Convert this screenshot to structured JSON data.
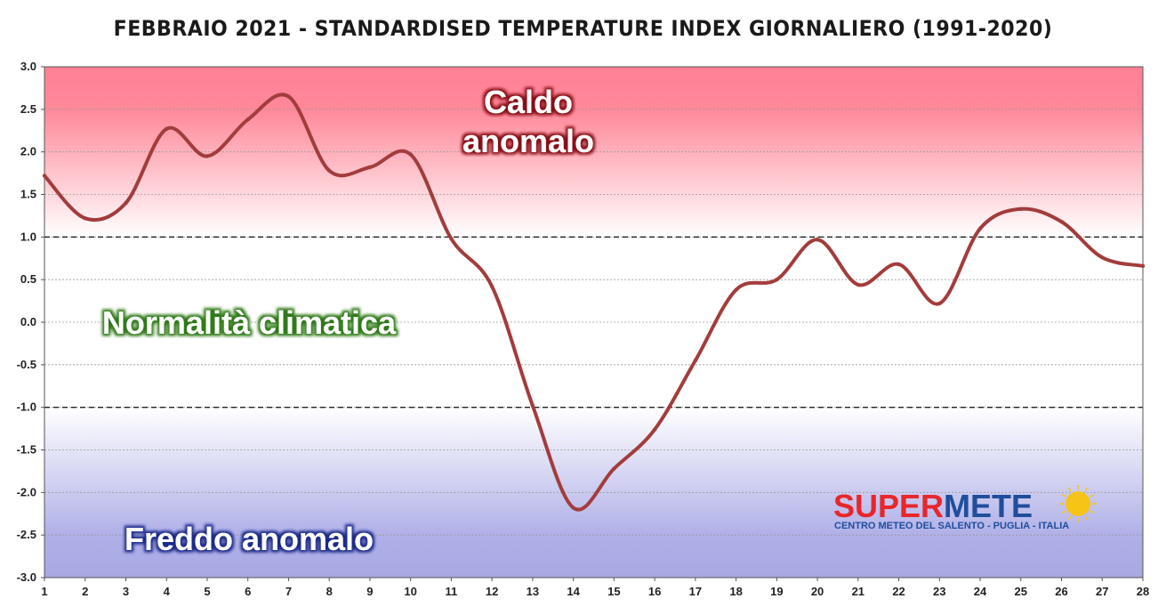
{
  "chart_data": {
    "type": "line",
    "title": "FEBBRAIO 2021 - STANDARDISED TEMPERATURE INDEX GIORNALIERO (1991-2020)",
    "xlabel": "",
    "ylabel": "",
    "categories": [
      "1",
      "2",
      "3",
      "4",
      "5",
      "6",
      "7",
      "8",
      "9",
      "10",
      "11",
      "12",
      "13",
      "14",
      "15",
      "16",
      "17",
      "18",
      "19",
      "20",
      "21",
      "22",
      "23",
      "24",
      "25",
      "26",
      "27",
      "28"
    ],
    "values": [
      1.72,
      1.22,
      1.4,
      2.27,
      1.95,
      2.38,
      2.65,
      1.78,
      1.82,
      1.97,
      0.98,
      0.42,
      -0.98,
      -2.18,
      -1.72,
      -1.26,
      -0.45,
      0.38,
      0.5,
      0.97,
      0.44,
      0.68,
      0.22,
      1.1,
      1.33,
      1.18,
      0.76,
      0.66
    ],
    "ylim": [
      -3.0,
      3.0
    ],
    "yticks": [
      "3.0",
      "2.5",
      "2.0",
      "1.5",
      "1.0",
      "0.5",
      "0.0",
      "-0.5",
      "-1.0",
      "-1.5",
      "-2.0",
      "-2.5",
      "-3.0"
    ],
    "grid": true,
    "thresholds": [
      1.0,
      -1.0
    ],
    "line_color": "#a33c3c",
    "zones": {
      "warm": "Caldo anomalo",
      "normal": "Normalità climatica",
      "cold": "Freddo anomalo"
    }
  },
  "logo": {
    "super": "SUPER",
    "meteo": "METE",
    "subtitle": "CENTRO METEO DEL SALENTO - PUGLIA - ITALIA",
    "red": "#e8262b",
    "blue": "#1f4e9c",
    "sun": "#f6c416"
  }
}
